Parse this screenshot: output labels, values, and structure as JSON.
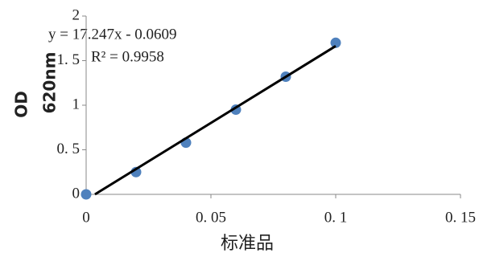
{
  "chart_data": {
    "type": "scatter",
    "x_label": "标准品",
    "y_label": [
      "OD",
      "620nm"
    ],
    "equation": "y = 17.247x - 0.0609",
    "r_squared": "R² = 0.9958",
    "trendline": {
      "slope": 17.247,
      "intercept": -0.0609,
      "color": "#000000"
    },
    "series": [
      {
        "name": "OD",
        "color": "#4f81bd",
        "x": [
          0,
          0.02,
          0.04,
          0.06,
          0.08,
          0.1
        ],
        "values": [
          0,
          0.25,
          0.58,
          0.95,
          1.32,
          1.7
        ]
      }
    ],
    "xlim": [
      0,
      0.15
    ],
    "xticks": [
      0,
      {
        "value": 0.05,
        "label": "0. 05"
      },
      {
        "value": 0.1,
        "label": "0. 1"
      },
      {
        "value": 0.15,
        "label": "0. 15"
      }
    ],
    "ylim": [
      0,
      2
    ],
    "yticks": [
      0,
      {
        "value": 0.5,
        "label": "0. 5"
      },
      1,
      {
        "value": 1.5,
        "label": "1. 5"
      },
      2
    ],
    "grid": false
  }
}
